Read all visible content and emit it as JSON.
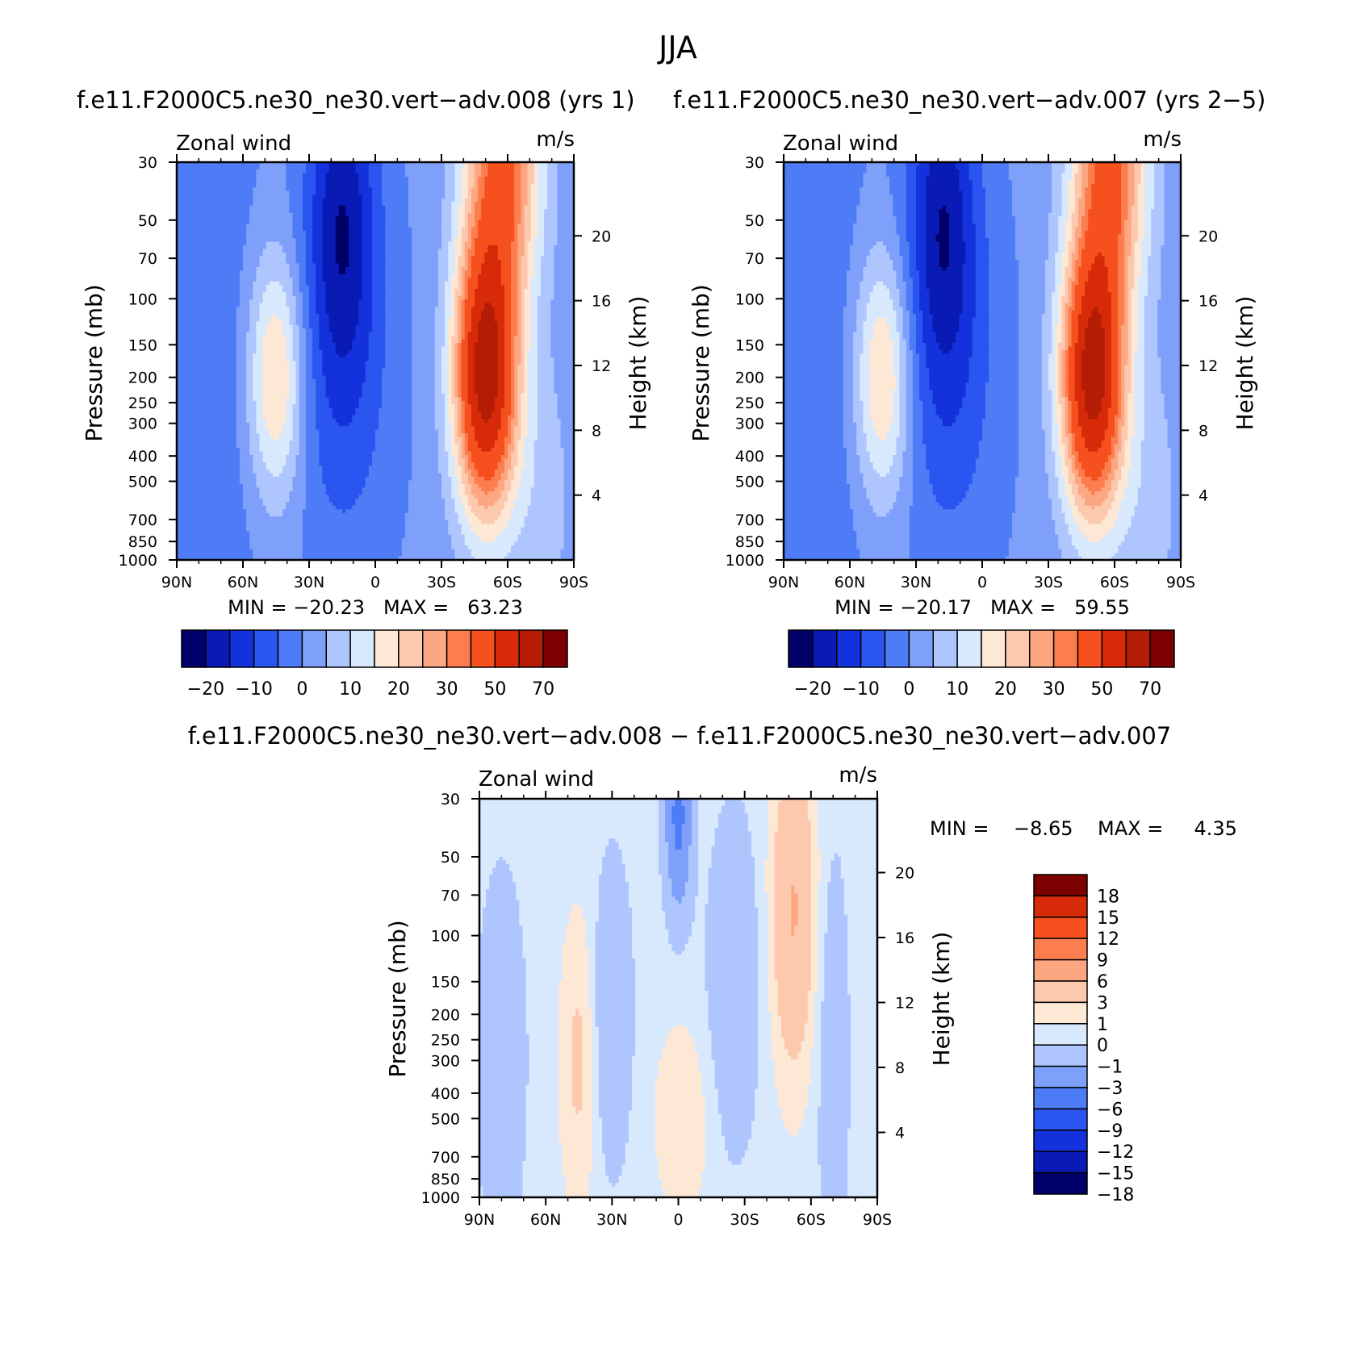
{
  "figure_title": "JJA",
  "colors": {
    "full_field": [
      "#00006a",
      "#0a1ab4",
      "#1432dc",
      "#2a55f0",
      "#4e7cf6",
      "#7ea0fb",
      "#aec6fd",
      "#d8e8fd",
      "#fde8d6",
      "#fdc9ae",
      "#fca782",
      "#fc7e4e",
      "#f5501e",
      "#d62a08",
      "#b41c05",
      "#7d0000"
    ],
    "difference": [
      "#00006a",
      "#0a1ab4",
      "#1432dc",
      "#2a55f0",
      "#4e7cf6",
      "#7ea0fb",
      "#aec6fd",
      "#d8e8fd",
      "#fde8d6",
      "#fdc9ae",
      "#fca782",
      "#fc7e4e",
      "#f5501e",
      "#d62a08",
      "#7d0000"
    ]
  },
  "chart_data": [
    {
      "type": "heatmap",
      "title": "f.e11.F2000C5.ne30_ne30.vert−adv.008 (yrs 1)",
      "left_label": "Zonal wind",
      "right_label": "m/s",
      "ylabel": "Pressure (mb)",
      "y2label": "Height (km)",
      "x_ticks": [
        "90N",
        "60N",
        "30N",
        "0",
        "30S",
        "60S",
        "90S"
      ],
      "y_ticks": [
        "30",
        "50",
        "70",
        "100",
        "150",
        "200",
        "250",
        "300",
        "400",
        "500",
        "700",
        "850",
        "1000"
      ],
      "y2_ticks": [
        "20",
        "16",
        "12",
        "8",
        "4"
      ],
      "min_max_text": "MIN = −20.23   MAX =   63.23",
      "min": -20.23,
      "max": 63.23,
      "colorbar_labels": [
        "−20",
        "−10",
        "0",
        "10",
        "20",
        "30",
        "50",
        "70"
      ],
      "x_range": [
        90,
        -90
      ],
      "y_range": [
        30,
        1000
      ],
      "jets": {
        "north_min_lat": 15,
        "north_min": -20.23,
        "south_max_lat": -58,
        "south_max": 63.23
      }
    },
    {
      "type": "heatmap",
      "title": "f.e11.F2000C5.ne30_ne30.vert−adv.007 (yrs 2−5)",
      "left_label": "Zonal wind",
      "right_label": "m/s",
      "ylabel": "Pressure (mb)",
      "y2label": "Height (km)",
      "x_ticks": [
        "90N",
        "60N",
        "30N",
        "0",
        "30S",
        "60S",
        "90S"
      ],
      "y_ticks": [
        "30",
        "50",
        "70",
        "100",
        "150",
        "200",
        "250",
        "300",
        "400",
        "500",
        "700",
        "850",
        "1000"
      ],
      "y2_ticks": [
        "20",
        "16",
        "12",
        "8",
        "4"
      ],
      "min_max_text": "MIN = −20.17   MAX =   59.55",
      "min": -20.17,
      "max": 59.55,
      "colorbar_labels": [
        "−20",
        "−10",
        "0",
        "10",
        "20",
        "30",
        "50",
        "70"
      ],
      "x_range": [
        90,
        -90
      ],
      "y_range": [
        30,
        1000
      ],
      "jets": {
        "north_min_lat": 18,
        "north_min": -20.17,
        "south_max_lat": -57,
        "south_max": 59.55
      }
    },
    {
      "type": "heatmap",
      "title": "f.e11.F2000C5.ne30_ne30.vert−adv.008 − f.e11.F2000C5.ne30_ne30.vert−adv.007",
      "left_label": "Zonal wind",
      "right_label": "m/s",
      "ylabel": "Pressure (mb)",
      "y2label": "Height (km)",
      "x_ticks": [
        "90N",
        "60N",
        "30N",
        "0",
        "30S",
        "60S",
        "90S"
      ],
      "y_ticks": [
        "30",
        "50",
        "70",
        "100",
        "150",
        "200",
        "250",
        "300",
        "400",
        "500",
        "700",
        "850",
        "1000"
      ],
      "y2_ticks": [
        "20",
        "16",
        "12",
        "8",
        "4"
      ],
      "min_max_text": "MIN =    −8.65    MAX =     4.35",
      "min": -8.65,
      "max": 4.35,
      "colorbar_labels": [
        "18",
        "15",
        "12",
        "9",
        "6",
        "3",
        "1",
        "0",
        "−1",
        "−3",
        "−6",
        "−9",
        "−12",
        "−15",
        "−18"
      ],
      "x_range": [
        90,
        -90
      ],
      "y_range": [
        30,
        1000
      ]
    }
  ]
}
